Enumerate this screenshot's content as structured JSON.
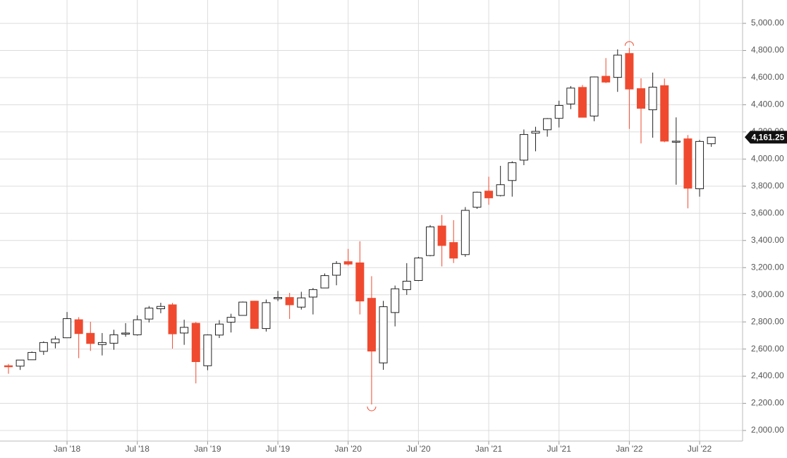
{
  "chart_data": {
    "type": "candlestick",
    "categories": [
      null,
      null,
      null,
      null,
      null,
      "Jan '18",
      null,
      null,
      null,
      null,
      null,
      "Jul '18",
      null,
      null,
      null,
      null,
      null,
      "Jan '19",
      null,
      null,
      null,
      null,
      null,
      "Jul '19",
      null,
      null,
      null,
      null,
      null,
      "Jan '20",
      null,
      null,
      null,
      null,
      null,
      "Jul '20",
      null,
      null,
      null,
      null,
      null,
      "Jan '21",
      null,
      null,
      null,
      null,
      null,
      "Jul '21",
      null,
      null,
      null,
      null,
      null,
      "Jan '22",
      null,
      null,
      null,
      null,
      null,
      "Jul '22",
      null
    ],
    "open": [
      2477,
      2474,
      2521,
      2583,
      2646,
      2683,
      2816,
      2716,
      2633,
      2643,
      2718,
      2705,
      2821,
      2897,
      2926,
      2718,
      2790,
      2477,
      2703,
      2798,
      2848,
      2953,
      2751,
      2971,
      2980,
      2909,
      2983,
      3050,
      3144,
      3244,
      3235,
      2974,
      2498,
      2869,
      3038,
      3105,
      3289,
      3507,
      3385,
      3296,
      3645,
      3764,
      3731,
      3842,
      3992,
      4191,
      4216,
      4300,
      4406,
      4528,
      4317,
      4610,
      4602,
      4778,
      4519,
      4363,
      4541,
      4130,
      4149,
      3781,
      4113
    ],
    "high": [
      2490,
      2519,
      2582,
      2657,
      2695,
      2873,
      2835,
      2801,
      2718,
      2742,
      2791,
      2848,
      2917,
      2941,
      2940,
      2816,
      2800,
      2708,
      2813,
      2860,
      2950,
      2955,
      2965,
      3028,
      3014,
      3022,
      3050,
      3157,
      3248,
      3338,
      3394,
      3137,
      2955,
      3068,
      3233,
      3280,
      3514,
      3588,
      3550,
      3646,
      3760,
      3870,
      3950,
      3984,
      4218,
      4238,
      4302,
      4430,
      4538,
      4546,
      4608,
      4744,
      4808,
      4819,
      4595,
      4637,
      4593,
      4307,
      4177,
      4141,
      4162
    ],
    "low": [
      2418,
      2446,
      2520,
      2557,
      2605,
      2683,
      2533,
      2586,
      2553,
      2595,
      2691,
      2699,
      2796,
      2864,
      2603,
      2631,
      2347,
      2444,
      2681,
      2722,
      2848,
      2750,
      2729,
      2953,
      2822,
      2891,
      2855,
      3050,
      3070,
      3214,
      2855,
      2192,
      2447,
      2767,
      2999,
      3101,
      3284,
      3209,
      3234,
      3280,
      3633,
      3663,
      3725,
      3723,
      3955,
      4057,
      4165,
      4233,
      4368,
      4306,
      4279,
      4560,
      4495,
      4222,
      4115,
      4157,
      4124,
      3811,
      3637,
      3723,
      4090
    ],
    "close": [
      2472,
      2519,
      2575,
      2648,
      2674,
      2824,
      2714,
      2641,
      2648,
      2705,
      2718,
      2816,
      2902,
      2914,
      2712,
      2760,
      2507,
      2704,
      2784,
      2834,
      2946,
      2752,
      2942,
      2980,
      2926,
      2977,
      3038,
      3141,
      3231,
      3226,
      2954,
      2585,
      2912,
      3044,
      3100,
      3271,
      3500,
      3363,
      3270,
      3622,
      3756,
      3714,
      3811,
      3973,
      4181,
      4204,
      4298,
      4395,
      4523,
      4308,
      4605,
      4567,
      4766,
      4516,
      4374,
      4530,
      4132,
      4132,
      3785,
      4130,
      4161
    ],
    "up_color": "#ffffff",
    "down_color": "#ef4a2f",
    "ylim": [
      1922,
      5172
    ],
    "yticks": [
      {
        "value": 2000,
        "label": "2,000.00"
      },
      {
        "value": 2200,
        "label": "2,200.00"
      },
      {
        "value": 2400,
        "label": "2,400.00"
      },
      {
        "value": 2600,
        "label": "2,600.00"
      },
      {
        "value": 2800,
        "label": "2,800.00"
      },
      {
        "value": 3000,
        "label": "3,000.00"
      },
      {
        "value": 3200,
        "label": "3,200.00"
      },
      {
        "value": 3400,
        "label": "3,400.00"
      },
      {
        "value": 3600,
        "label": "3,600.00"
      },
      {
        "value": 3800,
        "label": "3,800.00"
      },
      {
        "value": 4000,
        "label": "4,000.00"
      },
      {
        "value": 4200,
        "label": "4,200.00"
      },
      {
        "value": 4400,
        "label": "4,400.00"
      },
      {
        "value": 4600,
        "label": "4,600.00"
      },
      {
        "value": 4800,
        "label": "4,800.00"
      },
      {
        "value": 5000,
        "label": "5,000.00"
      }
    ],
    "last_price": {
      "value": 4161.25,
      "label": "4,161.25"
    },
    "grid": true
  }
}
